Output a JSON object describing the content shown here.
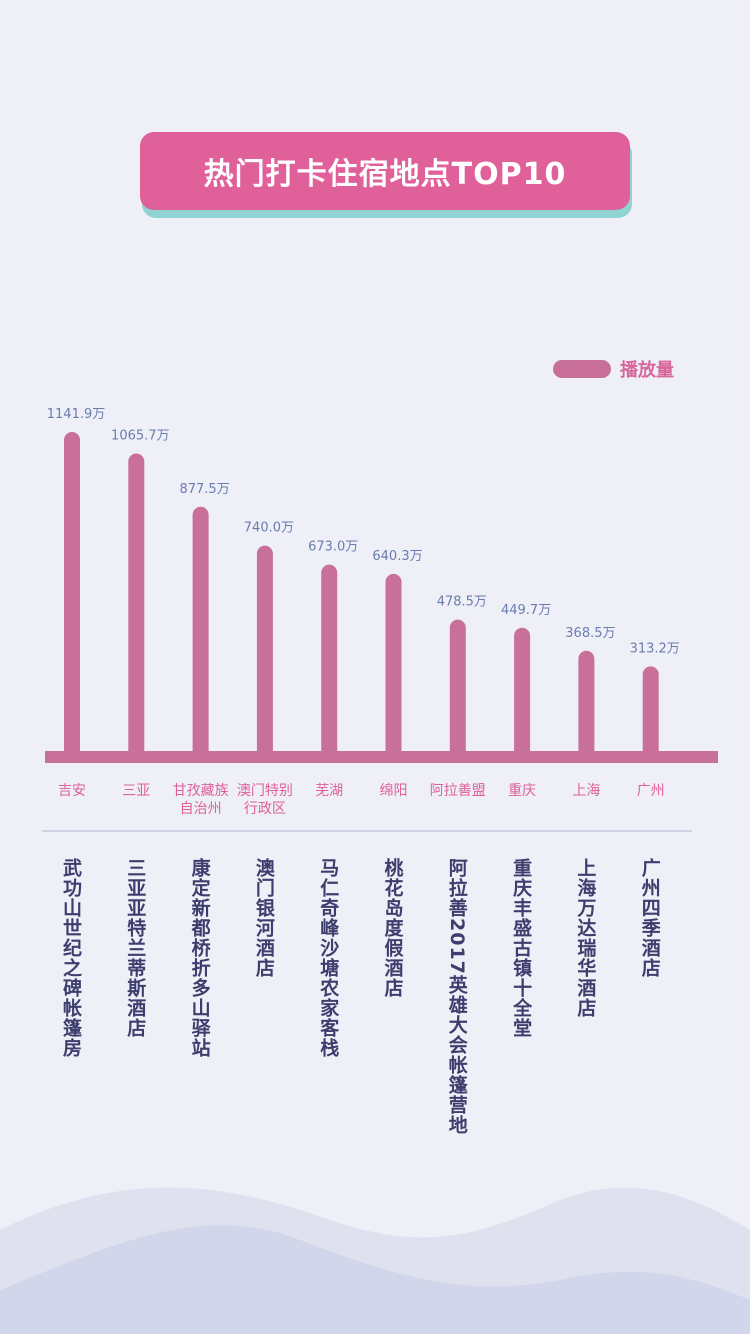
{
  "chart_data": {
    "type": "bar",
    "title": "热门打卡住宿地点TOP10",
    "categories": [
      "吉安",
      "三亚",
      "甘孜藏族自治州",
      "澳门特别行政区",
      "芜湖",
      "绵阳",
      "阿拉善盟",
      "重庆",
      "上海",
      "广州"
    ],
    "hotels": [
      "武功山世纪之碑帐篷房",
      "三亚亚特兰蒂斯酒店",
      "康定新都桥折多山驿站",
      "澳门银河酒店",
      "马仁奇峰沙塘农家客栈",
      "桃花岛度假酒店",
      "阿拉善2017英雄大会帐篷营地",
      "重庆丰盛古镇十全堂",
      "上海万达瑞华酒店",
      "广州四季酒店"
    ],
    "series": [
      {
        "name": "播放量",
        "color": "#c8709a",
        "values": [
          1141.9,
          1065.7,
          877.5,
          740.0,
          673.0,
          640.3,
          478.5,
          449.7,
          368.5,
          313.2
        ],
        "value_labels": [
          "1141.9万",
          "1065.7万",
          "877.5万",
          "740.0万",
          "673.0万",
          "640.3万",
          "478.5万",
          "449.7万",
          "368.5万",
          "313.2万"
        ]
      }
    ]
  }
}
